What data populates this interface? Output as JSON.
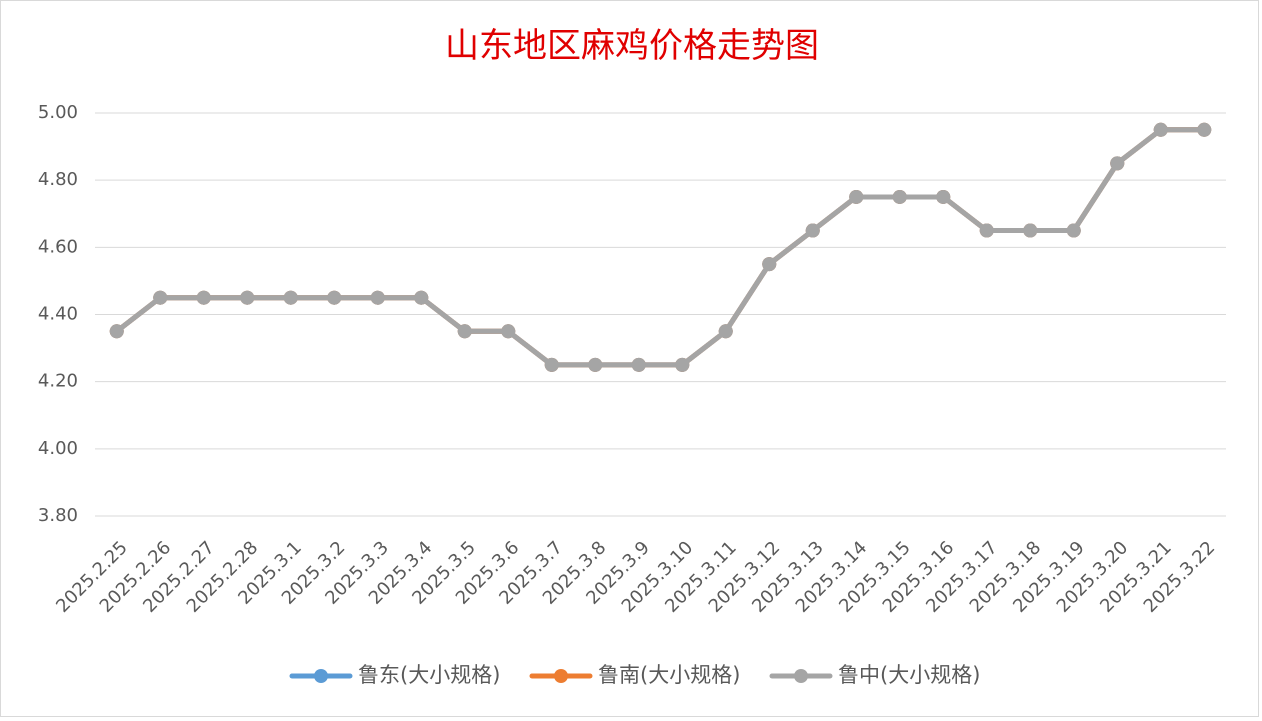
{
  "chart_data": {
    "type": "line",
    "title": "山东地区麻鸡价格走势图",
    "categories": [
      "2025.2.25",
      "2025.2.26",
      "2025.2.27",
      "2025.2.28",
      "2025.3.1",
      "2025.3.2",
      "2025.3.3",
      "2025.3.4",
      "2025.3.5",
      "2025.3.6",
      "2025.3.7",
      "2025.3.8",
      "2025.3.9",
      "2025.3.10",
      "2025.3.11",
      "2025.3.12",
      "2025.3.13",
      "2025.3.14",
      "2025.3.15",
      "2025.3.16",
      "2025.3.17",
      "2025.3.18",
      "2025.3.19",
      "2025.3.20",
      "2025.3.21",
      "2025.3.22"
    ],
    "series": [
      {
        "name": "鲁东(大小规格)",
        "color": "#5b9bd5",
        "values": [
          4.35,
          4.45,
          4.45,
          4.45,
          4.45,
          4.45,
          4.45,
          4.45,
          4.35,
          4.35,
          4.25,
          4.25,
          4.25,
          4.25,
          4.35,
          4.55,
          4.65,
          4.75,
          4.75,
          4.75,
          4.65,
          4.65,
          4.65,
          4.85,
          4.95,
          4.95
        ]
      },
      {
        "name": "鲁南(大小规格)",
        "color": "#ed7d31",
        "values": [
          4.35,
          4.45,
          4.45,
          4.45,
          4.45,
          4.45,
          4.45,
          4.45,
          4.35,
          4.35,
          4.25,
          4.25,
          4.25,
          4.25,
          4.35,
          4.55,
          4.65,
          4.75,
          4.75,
          4.75,
          4.65,
          4.65,
          4.65,
          4.85,
          4.95,
          4.95
        ]
      },
      {
        "name": "鲁中(大小规格)",
        "color": "#a5a5a5",
        "values": [
          4.35,
          4.45,
          4.45,
          4.45,
          4.45,
          4.45,
          4.45,
          4.45,
          4.35,
          4.35,
          4.25,
          4.25,
          4.25,
          4.25,
          4.35,
          4.55,
          4.65,
          4.75,
          4.75,
          4.75,
          4.65,
          4.65,
          4.65,
          4.85,
          4.95,
          4.95
        ]
      }
    ],
    "ylim": [
      3.8,
      5.0
    ],
    "yticks": [
      {
        "value": 3.8,
        "label": "3.80"
      },
      {
        "value": 4.0,
        "label": "4.00"
      },
      {
        "value": 4.2,
        "label": "4.20"
      },
      {
        "value": 4.4,
        "label": "4.40"
      },
      {
        "value": 4.6,
        "label": "4.60"
      },
      {
        "value": 4.8,
        "label": "4.80"
      },
      {
        "value": 5.0,
        "label": "5.00"
      }
    ],
    "grid": true,
    "legend": "bottom"
  }
}
